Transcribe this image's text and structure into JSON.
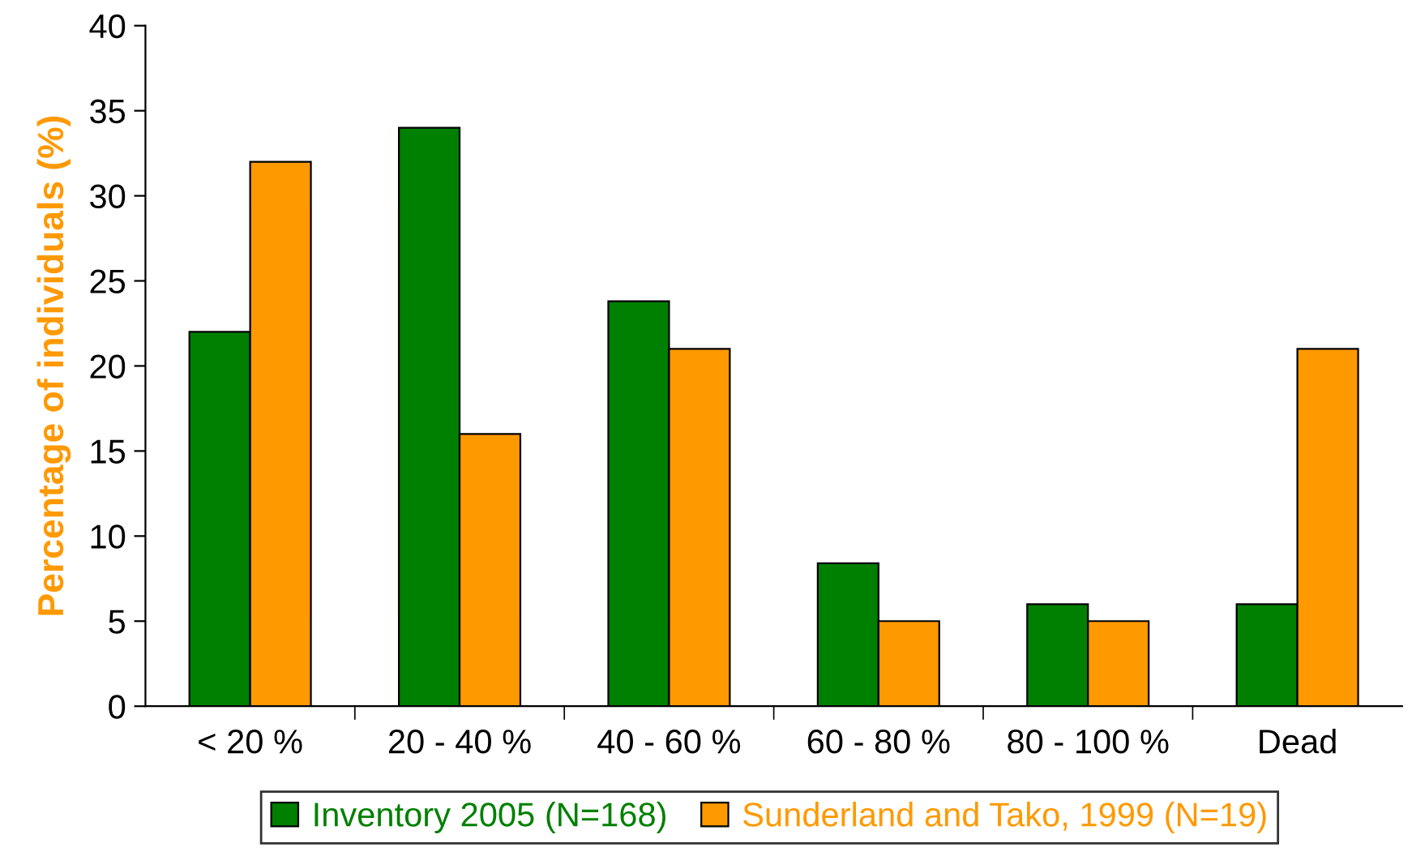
{
  "chart_data": {
    "type": "bar",
    "ylabel": "Percentage of individuals (%)",
    "categories": [
      "< 20 %",
      "20 - 40 %",
      "40 - 60 %",
      "60 - 80 %",
      "80 - 100 %",
      "Dead"
    ],
    "series": [
      {
        "name": "Inventory 2005 (N=168)",
        "color": "#008000",
        "values": [
          22,
          34,
          23.8,
          8.4,
          6,
          6
        ]
      },
      {
        "name": "Sunderland and Tako, 1999 (N=19)",
        "color": "#ff9900",
        "values": [
          32,
          16,
          21,
          5,
          5,
          21
        ]
      }
    ],
    "ylim": [
      0,
      40
    ],
    "yticks": [
      0,
      5,
      10,
      15,
      20,
      25,
      30,
      35,
      40
    ],
    "grid": false,
    "legend": "bottom"
  }
}
